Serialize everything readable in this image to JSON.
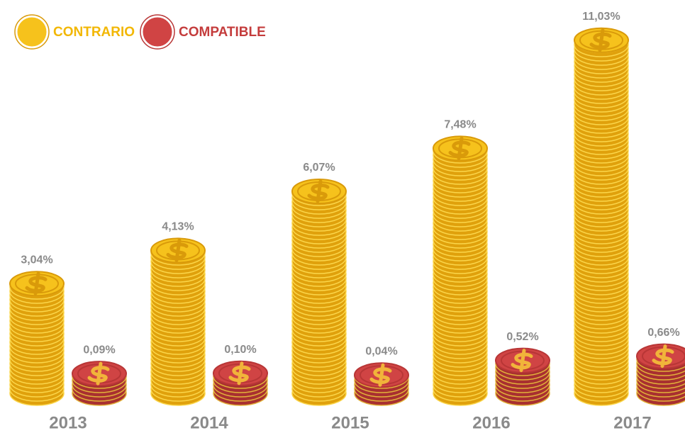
{
  "chart_data": {
    "type": "bar",
    "categories": [
      "2013",
      "2014",
      "2015",
      "2016",
      "2017"
    ],
    "series": [
      {
        "name": "CONTRARIO",
        "color": "#f6c21c",
        "values": [
          3.04,
          4.13,
          6.07,
          7.48,
          11.03
        ],
        "value_labels": [
          "3,04%",
          "4,13%",
          "6,07%",
          "7,48%",
          "11,03%"
        ]
      },
      {
        "name": "COMPATIBLE",
        "color": "#d04444",
        "values": [
          0.09,
          0.1,
          0.04,
          0.52,
          0.66
        ],
        "value_labels": [
          "0,09%",
          "0,10%",
          "0,04%",
          "0,52%",
          "0,66%"
        ]
      }
    ]
  }
}
